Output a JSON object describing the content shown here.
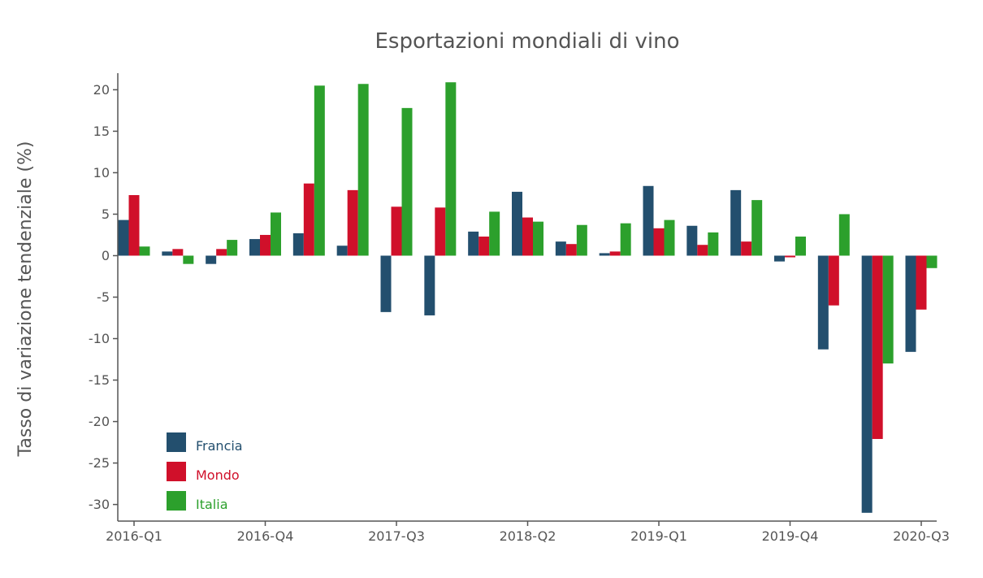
{
  "chart_data": {
    "type": "bar",
    "title": "Esportazioni mondiali di vino",
    "xlabel": "",
    "ylabel": "Tasso di variazione tendenziale (%)",
    "ylim": [
      -32,
      22
    ],
    "yticks": [
      20,
      15,
      10,
      5,
      0,
      -5,
      -10,
      -15,
      -20,
      -25,
      -30
    ],
    "ytick_labels": [
      "20",
      "15",
      "10",
      "5",
      "0",
      "-5",
      "-10",
      "-15",
      "-20",
      "-25",
      "-30"
    ],
    "categories": [
      "2016-Q1",
      "2016-Q2",
      "2016-Q3",
      "2016-Q4",
      "2017-Q1",
      "2017-Q2",
      "2017-Q3",
      "2017-Q4",
      "2018-Q1",
      "2018-Q2",
      "2018-Q3",
      "2018-Q4",
      "2019-Q1",
      "2019-Q2",
      "2019-Q3",
      "2019-Q4",
      "2020-Q1",
      "2020-Q2",
      "2020-Q3"
    ],
    "xtick_labels": [
      {
        "index": 0,
        "label": "2016-Q1"
      },
      {
        "index": 3,
        "label": "2016-Q4"
      },
      {
        "index": 6,
        "label": "2017-Q3"
      },
      {
        "index": 9,
        "label": "2018-Q2"
      },
      {
        "index": 12,
        "label": "2019-Q1"
      },
      {
        "index": 15,
        "label": "2019-Q4"
      },
      {
        "index": 18,
        "label": "2020-Q3"
      }
    ],
    "series": [
      {
        "name": "Francia",
        "color": "#234f6e",
        "values": [
          4.3,
          0.5,
          -1.0,
          2.0,
          2.7,
          1.2,
          -6.8,
          -7.2,
          2.9,
          7.7,
          1.7,
          0.3,
          8.4,
          3.6,
          7.9,
          -0.7,
          -11.3,
          -31.0,
          -11.6
        ]
      },
      {
        "name": "Mondo",
        "color": "#d0102a",
        "values": [
          7.3,
          0.8,
          0.8,
          2.5,
          8.7,
          7.9,
          5.9,
          5.8,
          2.3,
          4.6,
          1.4,
          0.5,
          3.3,
          1.3,
          1.7,
          -0.2,
          -6.0,
          -22.1,
          -6.5
        ]
      },
      {
        "name": "Italia",
        "color": "#2ca02c",
        "values": [
          1.1,
          -1.0,
          1.9,
          5.2,
          20.5,
          20.7,
          17.8,
          20.9,
          5.3,
          4.1,
          3.7,
          3.9,
          4.3,
          2.8,
          6.7,
          2.3,
          5.0,
          -13.0,
          -1.5
        ]
      }
    ],
    "legend": "bottom-left",
    "grid": false
  }
}
